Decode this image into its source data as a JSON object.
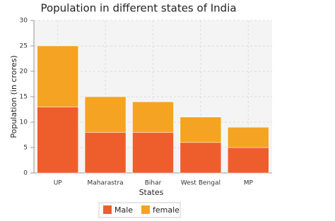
{
  "chart_data": {
    "type": "stacked_bar",
    "title": "Population in different states of India",
    "x_label": "States",
    "y_label": "Population (in crores)",
    "categories": [
      "UP",
      "Maharastra",
      "Bihar",
      "West Bengal",
      "MP"
    ],
    "series": [
      {
        "name": "Male",
        "color": "#ee5e2d",
        "values": [
          13,
          8,
          8,
          6,
          5
        ]
      },
      {
        "name": "female",
        "color": "#f4a422",
        "values": [
          12,
          7,
          6,
          5,
          4
        ]
      }
    ],
    "ylim": [
      0,
      30
    ],
    "yticks": [
      0,
      5,
      10,
      15,
      20,
      25,
      30
    ],
    "grid": true,
    "legend": "bottom"
  }
}
